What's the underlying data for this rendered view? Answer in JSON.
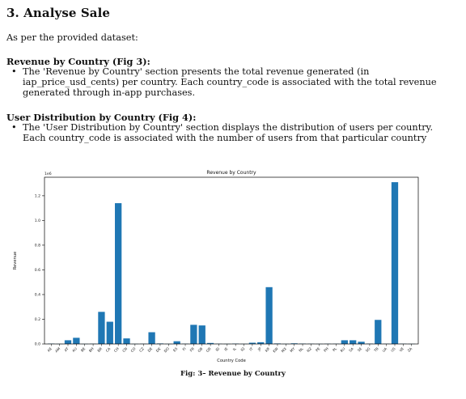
{
  "document": {
    "heading": "3. Analyse Sale",
    "intro": "As per the provided dataset:",
    "sections": [
      {
        "title": "Revenue by Country (Fig 3):",
        "bullet": "The 'Revenue by Country' section presents the total revenue generated (in iap_price_usd_cents) per country. Each country_code is associated with the total revenue generated through in-app purchases."
      },
      {
        "title": "User Distribution by Country (Fig 4):",
        "bullet": "The 'User Distribution by Country' section displays the distribution of users per country. Each country_code is associated with the number of users from that particular country"
      }
    ],
    "caption": "Fig: 3– Revenue by Country"
  },
  "chart_data": {
    "type": "bar",
    "title": "Revenue by Country",
    "xlabel": "Country Code",
    "ylabel": "Revenue",
    "offset_label": "1e6",
    "ylim": [
      0,
      1.35
    ],
    "yticks": [
      "0.0",
      "0.2",
      "0.4",
      "0.6",
      "0.8",
      "1.0",
      "1.2"
    ],
    "color": "#1f77b4",
    "categories": [
      "AE",
      "AM",
      "AT",
      "AU",
      "BE",
      "BH",
      "BR",
      "CA",
      "CH",
      "CN",
      "CO",
      "CZ",
      "DE",
      "DK",
      "DO",
      "ES",
      "FI",
      "FR",
      "GB",
      "GR",
      "ID",
      "IE",
      "IL",
      "IQ",
      "IT",
      "JP",
      "KR",
      "KW",
      "MX",
      "MY",
      "NL",
      "NZ",
      "PE",
      "PH",
      "PL",
      "RU",
      "SA",
      "SE",
      "SG",
      "TR",
      "UA",
      "US",
      "VE",
      "ZA"
    ],
    "values": [
      0.003,
      0.001,
      0.03,
      0.05,
      0.001,
      0.002,
      0.26,
      0.18,
      1.14,
      0.045,
      0.001,
      0.002,
      0.095,
      0.004,
      0.001,
      0.022,
      0.002,
      0.155,
      0.15,
      0.008,
      0.002,
      0.001,
      0.003,
      0.001,
      0.01,
      0.014,
      0.46,
      0.004,
      0.001,
      0.005,
      0.003,
      0.002,
      0.001,
      0.002,
      0.002,
      0.03,
      0.03,
      0.018,
      0.003,
      0.195,
      0.002,
      1.31,
      0.002,
      0.001
    ]
  }
}
